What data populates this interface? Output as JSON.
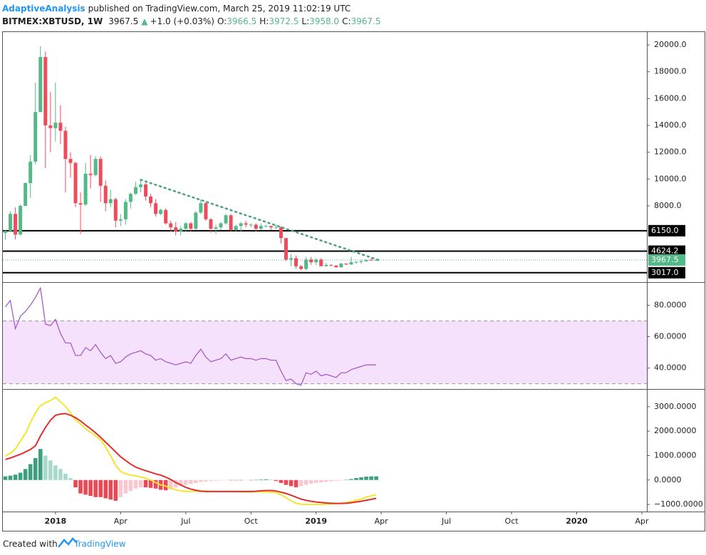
{
  "header": {
    "author": "AdaptiveAnalysis",
    "published": "published on TradingView.com, March 25, 2019 11:02:19 UTC",
    "symbol": "BITMEX:XBTUSD, 1W",
    "last": "3967.5",
    "arrow": "▲",
    "change": "+1.0 (+0.03%)",
    "ohlc": [
      {
        "key": "O:",
        "value": "3966.5"
      },
      {
        "key": "H:",
        "value": "3972.5"
      },
      {
        "key": "L:",
        "value": "3958.0"
      },
      {
        "key": "C:",
        "value": "3967.5"
      }
    ]
  },
  "footer": {
    "text": "Created with",
    "brand": "TradingView"
  },
  "chart_data": [
    {
      "type": "candlestick",
      "up_color": "#53b987",
      "down_color": "#eb4d5c",
      "open": [
        5990,
        6130,
        7400,
        5860,
        8000,
        9700,
        11300,
        15000,
        19100,
        14000,
        13800,
        14200,
        13600,
        11500,
        11200,
        8200,
        8100,
        10400,
        10300,
        11500,
        9500,
        8200,
        8500,
        6900,
        7000,
        8300,
        8900,
        9400,
        9600,
        8700,
        8200,
        7400,
        7700,
        6700,
        6400,
        6100,
        6300,
        6700,
        6300,
        7500,
        8200,
        7000,
        6300,
        6400,
        6700,
        7300,
        6200,
        6500,
        6700,
        6600,
        6600,
        6300,
        6500,
        6500,
        6400,
        6400,
        5600,
        4000,
        4100,
        3500,
        3300,
        4000,
        3800,
        4000,
        3500,
        3600,
        3550,
        3420,
        3700,
        3630,
        3800,
        3820,
        3880,
        3980,
        3966.5
      ],
      "high": [
        6190,
        7600,
        7880,
        8100,
        9750,
        11800,
        17200,
        19900,
        19500,
        16500,
        17200,
        15500,
        13900,
        12000,
        11300,
        9000,
        11200,
        11800,
        11700,
        11700,
        9900,
        9200,
        8600,
        7400,
        8500,
        9000,
        9800,
        9950,
        9700,
        8900,
        8500,
        7800,
        7800,
        6900,
        6800,
        6500,
        6800,
        6800,
        7600,
        8500,
        8300,
        7100,
        6600,
        6800,
        7400,
        7400,
        6600,
        6800,
        6900,
        6700,
        6700,
        6700,
        6600,
        6500,
        6600,
        6500,
        5600,
        4400,
        4300,
        3600,
        4200,
        4200,
        4100,
        4100,
        3750,
        3650,
        3600,
        3750,
        3700,
        4200,
        3900,
        3960,
        4000,
        4100,
        3972.5
      ],
      "low": [
        5480,
        6050,
        5500,
        5800,
        7990,
        8600,
        11100,
        15000,
        10800,
        12000,
        12800,
        12600,
        9000,
        10100,
        7900,
        5900,
        8000,
        9300,
        10200,
        8300,
        7600,
        7900,
        6400,
        6500,
        6600,
        7800,
        8800,
        9000,
        8400,
        7900,
        7200,
        7300,
        6600,
        6100,
        5800,
        5800,
        6100,
        6100,
        6200,
        7400,
        6900,
        6000,
        5900,
        6200,
        6600,
        6100,
        6100,
        6100,
        6400,
        6400,
        6100,
        6200,
        6400,
        6200,
        6300,
        5200,
        3900,
        3500,
        3300,
        3200,
        3200,
        3600,
        3600,
        3500,
        3500,
        3500,
        3400,
        3400,
        3600,
        3600,
        3700,
        3700,
        3800,
        3900,
        3958
      ],
      "close": [
        6130,
        7400,
        5860,
        8000,
        9700,
        11300,
        15000,
        19100,
        14000,
        13800,
        14200,
        13600,
        11500,
        11200,
        8200,
        8100,
        10400,
        10300,
        11500,
        9500,
        8200,
        8500,
        6900,
        7000,
        8300,
        8900,
        9400,
        9600,
        8700,
        8200,
        7400,
        7700,
        6700,
        6400,
        6100,
        6300,
        6700,
        6300,
        7500,
        8200,
        7000,
        6300,
        6400,
        6700,
        7300,
        6200,
        6500,
        6700,
        6600,
        6600,
        6300,
        6500,
        6500,
        6400,
        6400,
        5600,
        4000,
        4100,
        3500,
        3300,
        4000,
        3800,
        4000,
        3500,
        3600,
        3550,
        3420,
        3700,
        3630,
        3800,
        3820,
        3880,
        3980,
        3966.5,
        3967.5
      ],
      "ylim": [
        2475,
        20960
      ],
      "yticks": [
        {
          "value": 8000,
          "label": "8000.0"
        },
        {
          "value": 10000,
          "label": "10000.0"
        },
        {
          "value": 12000,
          "label": "12000.0"
        },
        {
          "value": 14000,
          "label": "14000.0"
        },
        {
          "value": 16000,
          "label": "16000.0"
        },
        {
          "value": 18000,
          "label": "18000.0"
        },
        {
          "value": 20000,
          "label": "20000.0"
        }
      ],
      "xlim": [
        -0.5,
        128
      ],
      "xticks": [
        {
          "value": 10,
          "label": "2018"
        },
        {
          "value": 23,
          "label": "Apr"
        },
        {
          "value": 36,
          "label": "Jul"
        },
        {
          "value": 49,
          "label": "Oct"
        },
        {
          "value": 62,
          "label": "2019"
        },
        {
          "value": 75,
          "label": "Apr"
        },
        {
          "value": 88,
          "label": "Jul"
        },
        {
          "value": 101,
          "label": "Oct"
        },
        {
          "value": 114,
          "label": "2020"
        },
        {
          "value": 127,
          "label": "Apr"
        }
      ],
      "levels": [
        {
          "value": 6150,
          "label": "6150.0",
          "color": "#000000",
          "style": "solid"
        },
        {
          "value": 4624.2,
          "label": "4624.2",
          "color": "#000000",
          "style": "solid"
        },
        {
          "value": 3967.5,
          "label": "3967.5",
          "color": "#53b987",
          "style": "dotted"
        },
        {
          "value": 3017,
          "label": "3017.0",
          "color": "#000000",
          "style": "solid"
        }
      ],
      "trendline": {
        "x": [
          27,
          75
        ],
        "y": [
          9950,
          3900
        ],
        "color": "#4a9f87"
      }
    },
    {
      "type": "line",
      "color": "#a052c4",
      "band": [
        30,
        70
      ],
      "band_color": "#f5e1fb",
      "values": [
        79,
        83,
        65,
        73,
        76,
        80,
        85,
        91,
        68,
        67,
        71,
        62,
        56,
        56,
        48,
        48,
        53,
        51,
        55,
        50,
        46,
        48,
        43,
        44,
        47,
        49,
        50,
        51,
        49,
        48,
        45,
        46,
        44,
        43,
        42,
        43,
        44,
        43,
        48,
        52,
        47,
        44,
        45,
        46,
        49,
        45,
        46,
        47,
        46,
        46,
        45,
        46,
        46,
        45,
        45,
        38,
        32,
        33,
        30,
        29,
        37,
        36,
        38,
        35,
        36,
        35,
        34,
        37,
        37,
        39,
        40,
        41,
        42,
        42,
        42
      ],
      "ylim": [
        27.1,
        93.8
      ],
      "yticks": [
        {
          "value": 40,
          "label": "40.0000"
        },
        {
          "value": 60,
          "label": "60.0000"
        },
        {
          "value": 80,
          "label": "80.0000"
        }
      ]
    },
    {
      "type": "macd",
      "macd_color": "#f5e52c",
      "signal_color": "#e0302e",
      "hist_colors": [
        "#3d9e80",
        "#a8d8cc",
        "#e84a55",
        "#f8c8cf"
      ],
      "macd": [
        985,
        1100,
        1275,
        1600,
        1900,
        2350,
        2750,
        3050,
        3160,
        3250,
        3390,
        3200,
        3010,
        2750,
        2450,
        2300,
        2100,
        1950,
        1800,
        1650,
        1350,
        1000,
        600,
        350,
        250,
        200,
        170,
        120,
        80,
        0,
        -100,
        -200,
        -250,
        -330,
        -400,
        -450,
        -460,
        -470,
        -460,
        -440,
        -450,
        -460,
        -470,
        -470,
        -460,
        -470,
        -480,
        -480,
        -480,
        -480,
        -480,
        -480,
        -490,
        -500,
        -520,
        -600,
        -720,
        -850,
        -950,
        -990,
        -1000,
        -1000,
        -1000,
        -1000,
        -990,
        -980,
        -970,
        -950,
        -920,
        -880,
        -830,
        -780,
        -700,
        -650,
        -600
      ],
      "signal": [
        840,
        900,
        980,
        1050,
        1150,
        1250,
        1400,
        1800,
        2150,
        2450,
        2650,
        2700,
        2720,
        2650,
        2550,
        2420,
        2250,
        2100,
        1930,
        1750,
        1550,
        1350,
        1150,
        950,
        800,
        650,
        530,
        450,
        380,
        320,
        250,
        200,
        120,
        20,
        -100,
        -200,
        -300,
        -370,
        -420,
        -460,
        -470,
        -470,
        -470,
        -470,
        -470,
        -470,
        -470,
        -470,
        -470,
        -470,
        -460,
        -440,
        -430,
        -430,
        -450,
        -500,
        -550,
        -620,
        -700,
        -780,
        -830,
        -870,
        -900,
        -920,
        -940,
        -950,
        -960,
        -960,
        -950,
        -930,
        -900,
        -870,
        -830,
        -790,
        -750
      ],
      "histogram": [
        150,
        180,
        220,
        300,
        450,
        650,
        900,
        1270,
        1000,
        800,
        600,
        450,
        260,
        80,
        -300,
        -550,
        -600,
        -650,
        -700,
        -700,
        -750,
        -800,
        -850,
        -700,
        -550,
        -450,
        -350,
        -300,
        -300,
        -320,
        -350,
        -400,
        -420,
        -380,
        -300,
        -250,
        -200,
        -160,
        -120,
        -80,
        -60,
        -40,
        -30,
        -20,
        -10,
        -10,
        -10,
        -10,
        -5,
        -5,
        5,
        20,
        30,
        20,
        -40,
        -120,
        -200,
        -250,
        -300,
        -250,
        -200,
        -150,
        -120,
        -100,
        -70,
        -50,
        -30,
        -20,
        10,
        40,
        80,
        110,
        140,
        150,
        150
      ],
      "ylim": [
        -1261,
        3667
      ],
      "yticks": [
        {
          "value": -1000,
          "label": "−1000.0000"
        },
        {
          "value": 0,
          "label": "0.0000"
        },
        {
          "value": 1000,
          "label": "1000.0000"
        },
        {
          "value": 2000,
          "label": "2000.0000"
        },
        {
          "value": 3000,
          "label": "3000.0000"
        }
      ]
    }
  ]
}
